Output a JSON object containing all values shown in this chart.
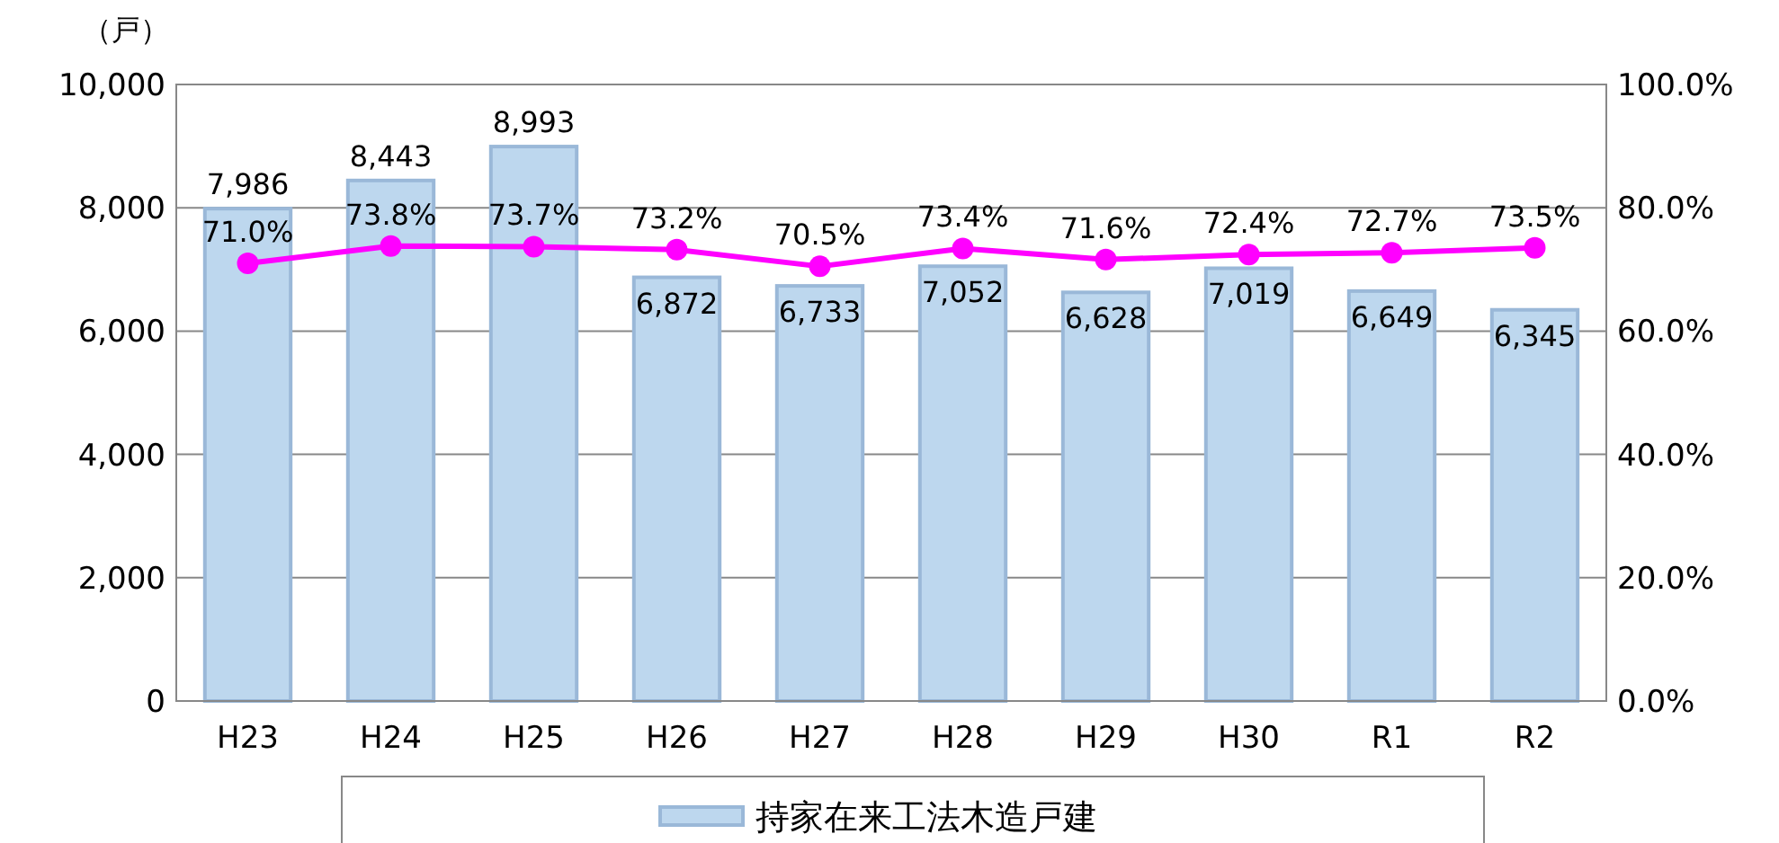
{
  "chart_data": {
    "type": "bar",
    "ylabel": "（戸）",
    "categories": [
      "H23",
      "H24",
      "H25",
      "H26",
      "H27",
      "H28",
      "H29",
      "H30",
      "R1",
      "R2"
    ],
    "series": [
      {
        "name": "持家在来工法木造戸建",
        "color": "#bdd7ee",
        "values": [
          7986,
          8443,
          8993,
          6872,
          6733,
          7052,
          6628,
          7019,
          6649,
          6345
        ],
        "value_labels": [
          "7,986",
          "8,443",
          "8,993",
          "6,872",
          "6,733",
          "7,052",
          "6,628",
          "7,019",
          "6,649",
          "6,345"
        ]
      },
      {
        "type": "line",
        "axis": "y2",
        "color": "#ff00ff",
        "values": [
          71.0,
          73.8,
          73.7,
          73.2,
          70.5,
          73.4,
          71.6,
          72.4,
          72.7,
          73.5
        ],
        "value_labels": [
          "71.0%",
          "73.8%",
          "73.7%",
          "73.2%",
          "70.5%",
          "73.4%",
          "71.6%",
          "72.4%",
          "72.7%",
          "73.5%"
        ]
      }
    ],
    "ylim": [
      0,
      10000
    ],
    "yticks": [
      0,
      {
        "value": 2000,
        "label": "2,000"
      },
      {
        "value": 4000,
        "label": "4,000"
      },
      {
        "value": 6000,
        "label": "6,000"
      },
      {
        "value": 8000,
        "label": "8,000"
      },
      {
        "value": 10000,
        "label": "10,000"
      }
    ],
    "y2lim": [
      0,
      100
    ],
    "y2ticks": [
      {
        "value": 0,
        "label": "0.0%"
      },
      {
        "value": 20,
        "label": "20.0%"
      },
      {
        "value": 40,
        "label": "40.0%"
      },
      {
        "value": 60,
        "label": "60.0%"
      },
      {
        "value": 80,
        "label": "80.0%"
      },
      {
        "value": 100,
        "label": "100.0%"
      }
    ],
    "grid": "y",
    "legend": "bottom",
    "marker": "circle"
  }
}
